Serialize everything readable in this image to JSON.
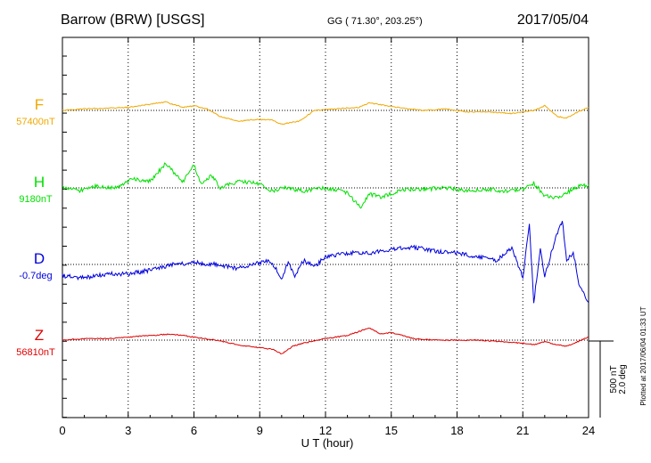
{
  "header": {
    "station": "Barrow (BRW)  [USGS]",
    "coords": "GG ( 71.30°, 203.25°)",
    "date": "2017/05/04"
  },
  "side_note": "Plotted at 2017/06/04 01:33 UT",
  "scale_note": {
    "line1": "500 nT",
    "line2": "2.0 deg"
  },
  "colors": {
    "F": "#f0a800",
    "H": "#00e000",
    "D": "#0000dd",
    "Z": "#e00000",
    "grid": "#000000"
  },
  "chart_data": {
    "type": "line",
    "title": "",
    "xlabel": "U T (hour)",
    "xlim": [
      0,
      24
    ],
    "xticks": [
      0,
      3,
      6,
      9,
      12,
      15,
      18,
      21,
      24
    ],
    "xtick_labels": [
      "0",
      "3",
      "6",
      "9",
      "12",
      "15",
      "18",
      "21",
      "24"
    ],
    "grid": "vertical dotted at every 3 h",
    "scale_bar": {
      "nT": 500,
      "deg": 2.0
    },
    "series": [
      {
        "name": "F",
        "label": "F",
        "baseline_label": "57400nT",
        "unit": "nT",
        "x": [
          0,
          1,
          2,
          3,
          4,
          4.7,
          5.5,
          6,
          6.6,
          7.2,
          8,
          8.8,
          9.5,
          10,
          10.8,
          11.5,
          12.5,
          13.5,
          14,
          14.8,
          15.5,
          16.5,
          17.5,
          18.5,
          19.5,
          20.5,
          21.5,
          22,
          22.6,
          23,
          23.5,
          24
        ],
        "y": [
          0,
          10,
          15,
          20,
          40,
          55,
          20,
          30,
          10,
          -40,
          -70,
          -60,
          -60,
          -90,
          -70,
          0,
          10,
          20,
          50,
          30,
          15,
          0,
          10,
          -10,
          -10,
          -20,
          0,
          30,
          -40,
          -50,
          -10,
          20
        ]
      },
      {
        "name": "H",
        "label": "H",
        "baseline_label": "9180nT",
        "unit": "nT",
        "x": [
          0,
          0.7,
          1.5,
          2.5,
          3.2,
          4,
          4.7,
          5.5,
          6,
          6.3,
          6.8,
          7.2,
          8,
          9,
          9.5,
          10.2,
          11,
          12,
          13,
          13.6,
          14,
          14.6,
          15.5,
          16.5,
          17.5,
          18.5,
          19.5,
          20.2,
          21,
          21.5,
          22,
          22.6,
          23,
          23.6,
          24
        ],
        "y": [
          0,
          -20,
          10,
          0,
          60,
          40,
          160,
          40,
          150,
          30,
          80,
          0,
          40,
          30,
          -20,
          0,
          -20,
          0,
          -30,
          -130,
          -40,
          -60,
          -10,
          -10,
          0,
          -20,
          -10,
          -20,
          -10,
          30,
          -50,
          -70,
          -30,
          10,
          20
        ]
      },
      {
        "name": "D",
        "label": "D",
        "baseline_label": "-0.7deg",
        "unit": "deg",
        "x": [
          0,
          1,
          2,
          3,
          4,
          5,
          6,
          7,
          8,
          9,
          9.5,
          10,
          10.3,
          10.6,
          11,
          11.5,
          12,
          12.5,
          13,
          14,
          15,
          16,
          17,
          18,
          19,
          19.8,
          20.5,
          21,
          21.3,
          21.5,
          21.8,
          22,
          22.5,
          22.8,
          23,
          23.3,
          23.6,
          24
        ],
        "y": [
          -0.3,
          -0.35,
          -0.25,
          -0.25,
          -0.15,
          0,
          0.05,
          0,
          -0.1,
          0.05,
          0.1,
          -0.35,
          0.05,
          -0.3,
          0.1,
          -0.05,
          0.2,
          0.25,
          0.3,
          0.3,
          0.4,
          0.45,
          0.35,
          0.3,
          0.2,
          0.1,
          0.45,
          -0.35,
          1.05,
          -1.0,
          0.4,
          -0.3,
          0.7,
          1.15,
          0.1,
          0.3,
          -0.6,
          -1.0
        ]
      },
      {
        "name": "Z",
        "label": "Z",
        "baseline_label": "56810nT",
        "unit": "nT",
        "x": [
          0,
          1,
          2,
          3,
          4,
          5,
          6,
          7,
          8,
          9,
          9.6,
          10,
          10.5,
          11,
          12,
          13,
          14,
          14.5,
          15,
          16,
          17,
          18,
          19,
          20,
          21,
          21.5,
          22,
          22.5,
          23,
          23.5,
          24
        ],
        "y": [
          0,
          10,
          10,
          20,
          30,
          40,
          20,
          0,
          -30,
          -50,
          -60,
          -90,
          -40,
          -20,
          10,
          30,
          80,
          40,
          50,
          10,
          0,
          0,
          0,
          -10,
          -20,
          -30,
          -10,
          -30,
          -40,
          -10,
          20
        ]
      }
    ]
  }
}
